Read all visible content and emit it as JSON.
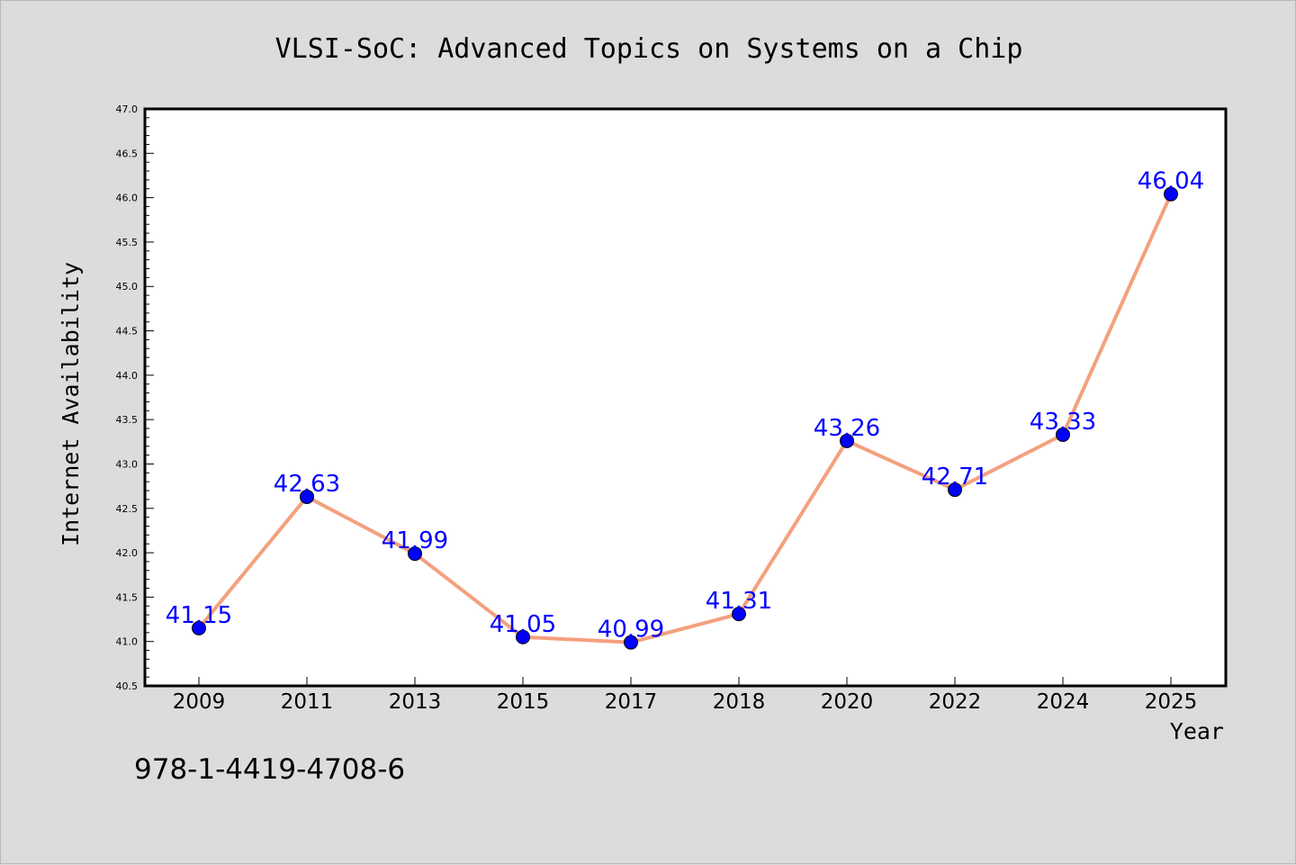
{
  "figure": {
    "footer_text": "978-1-4419-4708-6"
  },
  "colors": {
    "background": "#dcdcdc",
    "plot_background": "#ffffff",
    "line": "#f4a07e",
    "marker": "#0000ff",
    "label": "#0000ff",
    "text": "#000000"
  },
  "chart_data": {
    "type": "line",
    "title": "VLSI-SoC: Advanced Topics on Systems on a Chip",
    "xlabel": "Year",
    "ylabel": "Internet Availability",
    "categories": [
      "2009",
      "2011",
      "2013",
      "2015",
      "2017",
      "2018",
      "2020",
      "2022",
      "2024",
      "2025"
    ],
    "series": [
      {
        "values": [
          41.15,
          42.63,
          41.99,
          41.05,
          40.99,
          41.31,
          43.26,
          42.71,
          43.33,
          46.04
        ],
        "data_labels": [
          "41.15",
          "42.63",
          "41.99",
          "41.05",
          "40.99",
          "41.31",
          "43.26",
          "42.71",
          "43.33",
          "46.04"
        ]
      }
    ],
    "ylim": [
      40.5,
      47.0
    ],
    "yticks": [
      "40.5",
      "41.0",
      "41.5",
      "42.0",
      "42.5",
      "43.0",
      "43.5",
      "44.0",
      "44.5",
      "45.0",
      "45.5",
      "46.0",
      "46.5",
      "47.0"
    ],
    "grid": false,
    "legend": "none",
    "marker": "circle"
  }
}
